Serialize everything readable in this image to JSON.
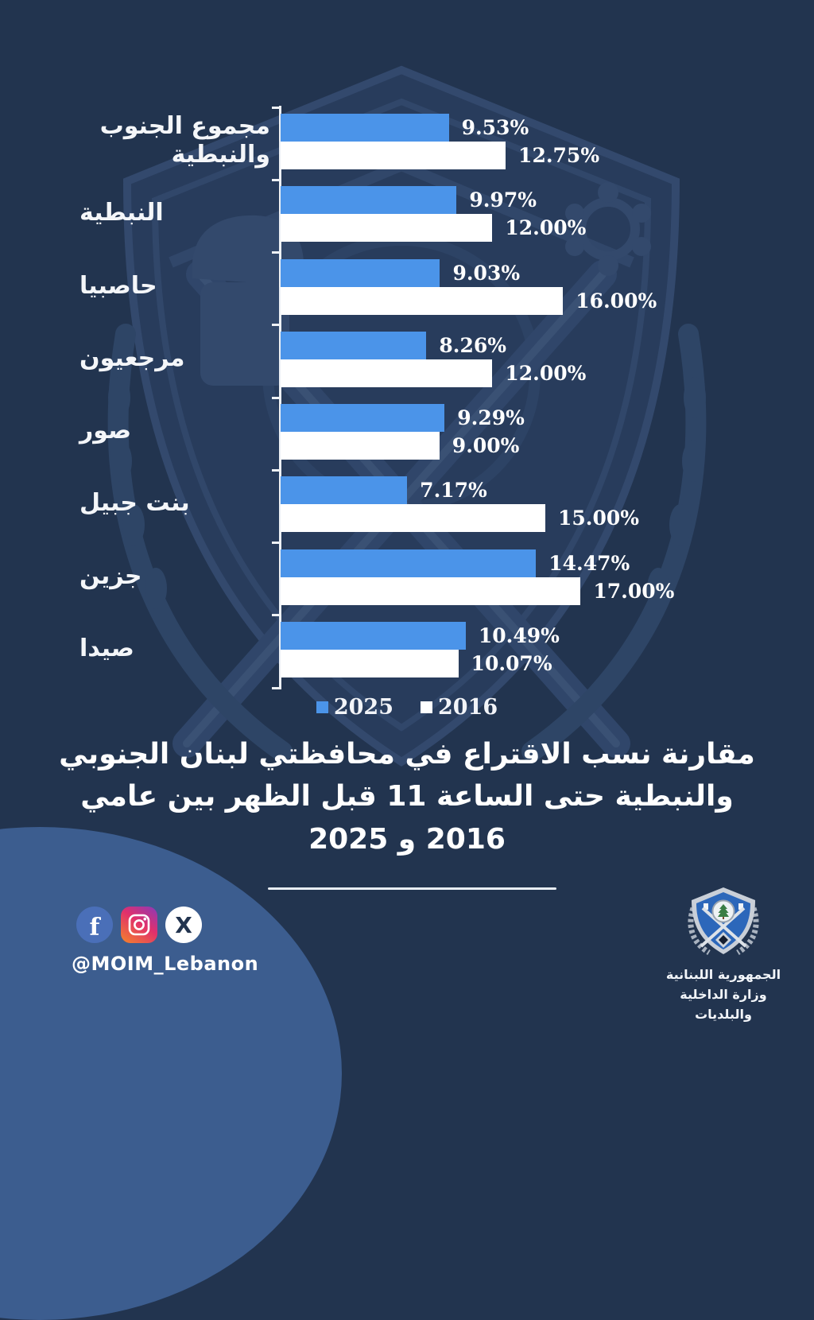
{
  "page": {
    "background": "#22344f",
    "accent_blue": "#4b94e9",
    "swoosh_blue": "#3c5d8f"
  },
  "chart_data": {
    "type": "bar",
    "orientation": "horizontal",
    "title": "مقارنة نسب الاقتراع في محافظتي لبنان الجنوبي والنبطية حتى الساعة 11 قبل الظهر بين عامي 2016 و 2025",
    "categories": [
      "مجموع الجنوب والنبطية",
      "النبطية",
      "حاصبيا",
      "مرجعيون",
      "صور",
      "بنت جبيل",
      "جزين",
      "صيدا"
    ],
    "series": [
      {
        "name": "2025",
        "color": "#4b94e9",
        "values": [
          9.53,
          9.97,
          9.03,
          8.26,
          9.29,
          7.17,
          14.47,
          10.49
        ],
        "labels": [
          "9.53%",
          "9.97%",
          "9.03%",
          "8.26%",
          "9.29%",
          "7.17%",
          "14.47%",
          "10.49%"
        ]
      },
      {
        "name": "2016",
        "color": "#ffffff",
        "values": [
          12.75,
          12.0,
          16.0,
          12.0,
          9.0,
          15.0,
          17.0,
          10.07
        ],
        "labels": [
          "12.75%",
          "12.00%",
          "16.00%",
          "12.00%",
          "9.00%",
          "15.00%",
          "17.00%",
          "10.07%"
        ]
      }
    ],
    "xlim": [
      0,
      17.5
    ],
    "grid": false,
    "legend_position": "bottom",
    "legend": [
      "2025",
      "2016"
    ]
  },
  "legend": {
    "item_2025": "2025",
    "item_2016": "2016"
  },
  "title": {
    "line1": "مقارنة نسب الاقتراع في محافظتي لبنان الجنوبي",
    "line2": "والنبطية حتى الساعة 11 قبل الظهر بين عامي",
    "line3": "2016 و 2025"
  },
  "footer": {
    "social_handle": "@MOIM_Lebanon",
    "social_icons": [
      "facebook-icon",
      "instagram-icon",
      "x-icon"
    ],
    "facebook_glyph": "f",
    "x_glyph": "X",
    "ministry_line1": "الجمهورية اللبنانية",
    "ministry_line2": "وزارة الداخلية والبلديات"
  }
}
